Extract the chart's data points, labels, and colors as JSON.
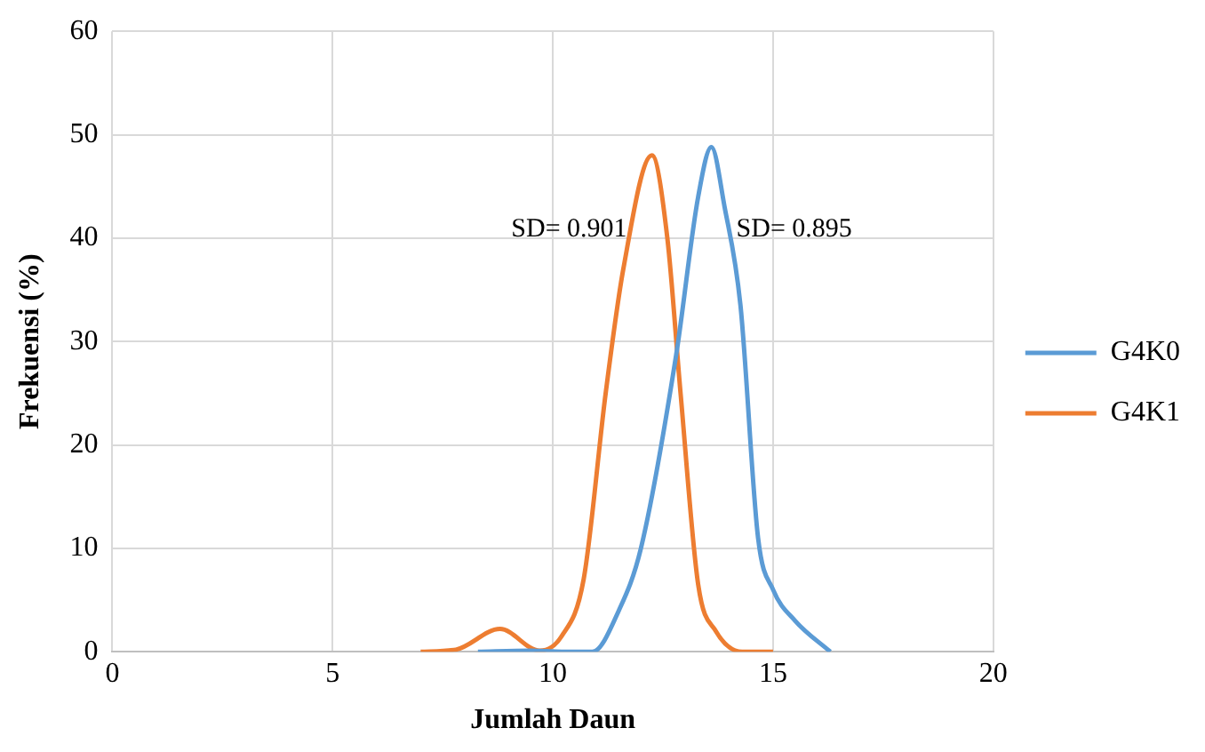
{
  "chart_data": {
    "type": "line",
    "xlabel": "Jumlah Daun",
    "ylabel": "Frekuensi (%)",
    "xlim": [
      0,
      20
    ],
    "xticks": [
      0,
      5,
      10,
      15,
      20
    ],
    "ylim": [
      0,
      60
    ],
    "yticks": [
      0,
      10,
      20,
      30,
      40,
      50,
      60
    ],
    "grid": true,
    "legend": "right",
    "marker": "none",
    "line_style": "solid",
    "series": [
      {
        "name": "G4K0",
        "color": "#5b9bd5",
        "x": [
          8.3,
          9.5,
          10.2,
          10.9,
          11.5,
          12,
          12.8,
          13.3,
          13.6,
          13.9,
          14.26,
          14.66,
          15,
          15.5,
          16.3
        ],
        "values": [
          0,
          0.1,
          0,
          0,
          4,
          10,
          28.7,
          44,
          48.8,
          43,
          33.5,
          11,
          6,
          3,
          0
        ]
      },
      {
        "name": "G4K1",
        "color": "#ed7d31",
        "x": [
          7,
          7.8,
          8.8,
          9.7,
          10.2,
          10.7,
          11.2,
          11.6,
          12.25,
          12.6,
          12.9,
          13.3,
          13.7,
          14.3,
          15
        ],
        "values": [
          0,
          0.2,
          2.2,
          0.1,
          1.5,
          7,
          25,
          37,
          48,
          40,
          25,
          6.5,
          2,
          0,
          0
        ]
      }
    ],
    "annotations": [
      "SD= 0.901",
      "SD= 0.895"
    ]
  }
}
